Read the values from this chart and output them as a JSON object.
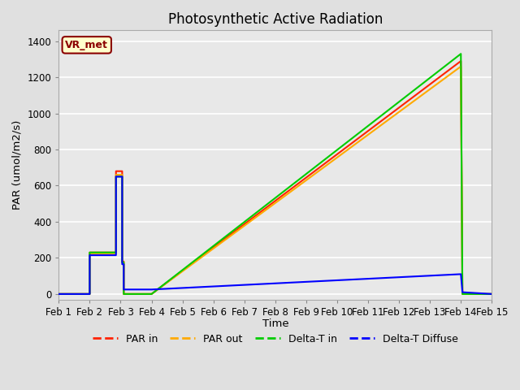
{
  "title": "Photosynthetic Active Radiation",
  "ylabel": "PAR (umol/m2/s)",
  "xlabel": "Time",
  "annotation": "VR_met",
  "ylim": [
    -30,
    1460
  ],
  "xlim": [
    0,
    14
  ],
  "xtick_labels": [
    "Feb 1",
    "Feb 2",
    "Feb 3",
    "Feb 4",
    "Feb 5",
    "Feb 6",
    "Feb 7",
    "Feb 8",
    "Feb 9",
    "Feb 10",
    "Feb 11",
    "Feb 12",
    "Feb 13",
    "Feb 14",
    "Feb 15"
  ],
  "xtick_positions": [
    0,
    1,
    2,
    3,
    4,
    5,
    6,
    7,
    8,
    9,
    10,
    11,
    12,
    13,
    14
  ],
  "ytick_positions": [
    0,
    200,
    400,
    600,
    800,
    1000,
    1200,
    1400
  ],
  "background_color": "#e0e0e0",
  "plot_bg_color": "#e8e8e8",
  "grid_color": "#ffffff",
  "colors": {
    "PAR_in": "#ff2200",
    "PAR_out": "#ffaa00",
    "Delta_T_in": "#00cc00",
    "Delta_T_Diffuse": "#0000ff"
  },
  "legend_labels": [
    "PAR in",
    "PAR out",
    "Delta-T in",
    "Delta-T Diffuse"
  ],
  "par_in_x": [
    0,
    1.0,
    1.0,
    1.85,
    1.85,
    2.05,
    2.05,
    2.1,
    2.1,
    3.0,
    13.0,
    13.0,
    13.05,
    14.0
  ],
  "par_in_y": [
    0,
    0,
    230,
    230,
    680,
    680,
    180,
    180,
    0,
    0,
    1290,
    1290,
    0,
    0
  ],
  "par_out_x": [
    0,
    1.0,
    1.0,
    1.85,
    1.85,
    2.05,
    2.05,
    2.1,
    2.1,
    3.0,
    13.0,
    13.0,
    13.05,
    14.0
  ],
  "par_out_y": [
    0,
    0,
    225,
    225,
    660,
    660,
    175,
    175,
    0,
    0,
    1260,
    1260,
    0,
    0
  ],
  "delta_t_in_x": [
    0,
    1.0,
    1.0,
    1.85,
    1.85,
    2.05,
    2.05,
    2.1,
    2.1,
    2.15,
    3.0,
    13.0,
    13.0,
    13.05,
    14.0
  ],
  "delta_t_in_y": [
    0,
    0,
    230,
    230,
    650,
    650,
    175,
    175,
    0,
    0,
    0,
    1330,
    1330,
    0,
    0
  ],
  "dif_x": [
    0,
    1.0,
    1.0,
    1.85,
    1.85,
    2.05,
    2.05,
    2.1,
    2.1,
    3.0,
    13.0,
    13.0,
    13.05,
    14.0
  ],
  "dif_y": [
    0,
    0,
    215,
    215,
    650,
    650,
    165,
    165,
    25,
    25,
    110,
    110,
    10,
    0
  ]
}
